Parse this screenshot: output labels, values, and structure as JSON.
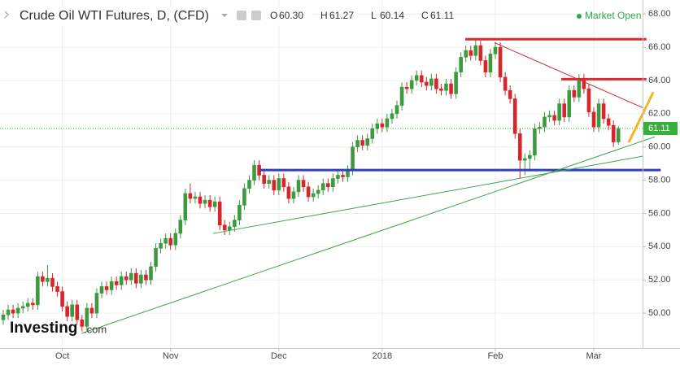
{
  "chart_data": {
    "type": "candlestick",
    "title": "Crude Oil WTI Futures, D, (CFD)",
    "ohlc_header": [
      {
        "key": "O",
        "value": "60.30"
      },
      {
        "key": "H",
        "value": "61.27"
      },
      {
        "key": "L",
        "value": "60.14"
      },
      {
        "key": "C",
        "value": "61.11"
      }
    ],
    "status": "Market Open",
    "logo": {
      "name": "Investing",
      "suffix": ".com"
    },
    "categories": [
      null,
      null,
      null,
      null,
      null,
      null,
      null,
      null,
      null,
      null,
      null,
      null,
      "Oct",
      null,
      null,
      null,
      null,
      null,
      null,
      null,
      null,
      null,
      null,
      null,
      null,
      null,
      null,
      null,
      null,
      null,
      null,
      null,
      null,
      null,
      "Nov",
      null,
      null,
      null,
      null,
      null,
      null,
      null,
      null,
      null,
      null,
      null,
      null,
      null,
      null,
      null,
      null,
      null,
      null,
      null,
      null,
      null,
      "Dec",
      null,
      null,
      null,
      null,
      null,
      null,
      null,
      null,
      null,
      null,
      null,
      null,
      null,
      null,
      null,
      null,
      null,
      null,
      null,
      null,
      "2018",
      null,
      null,
      null,
      null,
      null,
      null,
      null,
      null,
      null,
      null,
      null,
      null,
      null,
      null,
      null,
      null,
      null,
      null,
      null,
      null,
      null,
      null,
      "Feb",
      null,
      null,
      null,
      null,
      null,
      null,
      null,
      null,
      null,
      null,
      null,
      null,
      null,
      null,
      null,
      null,
      null,
      null,
      null,
      "Mar",
      null,
      null,
      null,
      null,
      null
    ],
    "open": [
      49.6,
      49.9,
      50.2,
      50.0,
      50.3,
      50.4,
      50.6,
      50.5,
      52.2,
      51.9,
      52.1,
      51.6,
      51.3,
      50.4,
      49.8,
      50.5,
      49.6,
      49.2,
      50.3,
      50.0,
      51.2,
      51.6,
      51.4,
      51.9,
      51.7,
      52.2,
      52.0,
      52.4,
      51.8,
      52.3,
      52.0,
      52.8,
      53.9,
      54.2,
      54.5,
      54.1,
      54.8,
      55.6,
      57.2,
      56.9,
      57.0,
      56.6,
      56.8,
      56.4,
      56.7,
      55.3,
      55.0,
      55.2,
      55.6,
      56.5,
      57.5,
      58.0,
      58.9,
      58.3,
      57.8,
      58.0,
      57.4,
      58.1,
      57.6,
      56.9,
      57.3,
      58.0,
      57.6,
      57.0,
      57.2,
      57.4,
      57.8,
      57.6,
      58.1,
      58.3,
      58.2,
      58.6,
      60.0,
      60.4,
      60.1,
      60.5,
      61.1,
      61.4,
      61.2,
      61.7,
      62.0,
      62.5,
      63.6,
      63.5,
      64.0,
      64.3,
      63.9,
      63.7,
      64.1,
      63.5,
      63.4,
      63.8,
      63.2,
      64.5,
      65.4,
      65.8,
      65.5,
      66.1,
      65.2,
      64.5,
      65.6,
      66.0,
      64.2,
      63.4,
      62.9,
      60.8,
      59.2,
      59.3,
      59.5,
      61.1,
      61.2,
      61.8,
      61.9,
      61.6,
      62.6,
      61.8,
      63.4,
      63.0,
      64.1,
      63.5,
      62.1,
      61.2,
      62.6,
      61.7,
      61.3,
      60.3
    ],
    "high": [
      50.2,
      50.5,
      50.5,
      50.6,
      50.7,
      50.9,
      50.9,
      52.5,
      52.5,
      52.9,
      52.4,
      51.9,
      51.6,
      50.7,
      50.8,
      50.8,
      49.9,
      50.6,
      50.6,
      51.5,
      51.9,
      51.9,
      52.2,
      52.2,
      52.5,
      52.5,
      52.7,
      52.7,
      52.6,
      52.6,
      53.1,
      54.2,
      54.5,
      54.8,
      54.8,
      55.1,
      55.9,
      57.5,
      57.8,
      57.3,
      57.3,
      57.1,
      57.1,
      57.0,
      57.0,
      55.6,
      55.5,
      55.9,
      56.8,
      57.8,
      58.3,
      59.2,
      59.2,
      58.6,
      58.3,
      58.3,
      58.4,
      58.4,
      57.9,
      57.6,
      58.3,
      58.3,
      57.9,
      57.5,
      57.7,
      58.1,
      58.1,
      58.4,
      58.6,
      58.6,
      58.9,
      60.3,
      60.7,
      60.7,
      60.8,
      61.4,
      61.7,
      61.7,
      62.0,
      62.3,
      62.8,
      63.9,
      63.9,
      64.3,
      64.6,
      64.6,
      64.2,
      64.4,
      64.4,
      63.8,
      64.1,
      64.1,
      64.8,
      65.7,
      66.1,
      66.1,
      66.5,
      66.4,
      65.5,
      65.9,
      66.3,
      66.3,
      64.5,
      63.7,
      63.2,
      61.1,
      59.6,
      59.8,
      61.4,
      61.5,
      62.1,
      62.2,
      62.2,
      62.9,
      62.9,
      63.7,
      63.7,
      64.4,
      64.4,
      63.8,
      62.4,
      62.9,
      62.9,
      62.0,
      61.6,
      61.27
    ],
    "low": [
      49.3,
      49.6,
      49.7,
      49.7,
      50.0,
      50.1,
      50.2,
      50.2,
      51.6,
      51.6,
      51.3,
      51.0,
      50.1,
      49.5,
      49.5,
      49.3,
      48.9,
      48.9,
      49.7,
      49.7,
      50.9,
      51.1,
      51.1,
      51.4,
      51.4,
      51.7,
      51.7,
      51.5,
      51.5,
      51.7,
      51.7,
      52.5,
      53.6,
      53.9,
      53.8,
      53.8,
      54.5,
      55.3,
      56.6,
      56.6,
      56.3,
      56.3,
      56.1,
      56.1,
      55.0,
      54.7,
      54.7,
      54.9,
      55.3,
      56.2,
      57.2,
      57.7,
      58.0,
      57.5,
      57.5,
      57.1,
      57.1,
      57.3,
      56.6,
      56.6,
      57.0,
      57.3,
      56.7,
      56.7,
      56.9,
      57.1,
      57.3,
      57.3,
      57.8,
      57.9,
      57.9,
      58.3,
      59.7,
      59.8,
      59.8,
      60.2,
      60.8,
      60.9,
      60.9,
      61.4,
      61.7,
      62.2,
      63.2,
      63.2,
      63.7,
      63.6,
      63.4,
      63.4,
      63.2,
      63.1,
      63.1,
      62.9,
      62.9,
      64.2,
      65.1,
      65.2,
      65.2,
      64.9,
      64.2,
      64.2,
      65.3,
      63.9,
      63.1,
      62.6,
      60.5,
      58.1,
      58.3,
      58.6,
      59.2,
      60.8,
      60.9,
      61.5,
      61.3,
      61.3,
      61.5,
      61.5,
      62.7,
      62.7,
      63.2,
      61.8,
      60.9,
      60.9,
      61.4,
      61.0,
      60.0,
      60.14
    ],
    "close": [
      49.9,
      50.2,
      50.0,
      50.3,
      50.4,
      50.6,
      50.5,
      52.2,
      51.9,
      52.1,
      51.6,
      51.3,
      50.4,
      49.8,
      50.5,
      49.6,
      49.2,
      50.3,
      50.0,
      51.2,
      51.6,
      51.4,
      51.9,
      51.7,
      52.2,
      52.0,
      52.4,
      51.8,
      52.3,
      52.0,
      52.8,
      53.9,
      54.2,
      54.5,
      54.1,
      54.8,
      55.6,
      57.2,
      56.9,
      57.0,
      56.6,
      56.8,
      56.4,
      56.7,
      55.3,
      55.0,
      55.2,
      55.6,
      56.5,
      57.5,
      58.0,
      58.9,
      58.3,
      57.8,
      58.0,
      57.4,
      58.1,
      57.6,
      56.9,
      57.3,
      58.0,
      57.6,
      57.0,
      57.2,
      57.4,
      57.8,
      57.6,
      58.1,
      58.3,
      58.2,
      58.6,
      60.0,
      60.4,
      60.1,
      60.5,
      61.1,
      61.4,
      61.2,
      61.7,
      62.0,
      62.5,
      63.6,
      63.5,
      64.0,
      64.3,
      63.9,
      63.7,
      64.1,
      63.5,
      63.4,
      63.8,
      63.2,
      64.5,
      65.4,
      65.8,
      65.5,
      66.1,
      65.2,
      64.5,
      65.6,
      66.0,
      64.2,
      63.4,
      62.9,
      60.8,
      59.2,
      59.3,
      59.5,
      61.1,
      61.2,
      61.8,
      61.9,
      61.6,
      62.6,
      61.8,
      63.4,
      63.0,
      64.1,
      63.5,
      62.1,
      61.2,
      62.6,
      61.7,
      61.3,
      60.3,
      61.11
    ],
    "up_color": "#3d9a3f",
    "down_color": "#d7262b",
    "last_price": {
      "value": 61.11,
      "label": "61.11"
    },
    "last_price_color": "#35b03a",
    "ylim": [
      47.9,
      68.5
    ],
    "yticks": [
      {
        "value": 50,
        "label": "50.00"
      },
      {
        "value": 52,
        "label": "52.00"
      },
      {
        "value": 54,
        "label": "54.00"
      },
      {
        "value": 56,
        "label": "56.00"
      },
      {
        "value": 58,
        "label": "58.00"
      },
      {
        "value": 60,
        "label": "60.00"
      },
      {
        "value": 62,
        "label": "62.00"
      },
      {
        "value": 64,
        "label": "64.00"
      },
      {
        "value": 66,
        "label": "66.00"
      },
      {
        "value": 68,
        "label": "68.00"
      }
    ],
    "grid": true,
    "drawings": [
      {
        "color": "#e0262f",
        "width": 3,
        "x": [
          93.9,
          130.7
        ],
        "y": [
          66.48,
          66.48
        ]
      },
      {
        "color": "#e0262f",
        "width": 3,
        "x": [
          113.4,
          130.7
        ],
        "y": [
          64.08,
          64.08
        ]
      },
      {
        "color": "#2f3fc0",
        "width": 3,
        "x": [
          52.2,
          133.6
        ],
        "y": [
          58.61,
          58.61
        ]
      },
      {
        "color": "#c8303a",
        "width": 1,
        "x": [
          99.8,
          129.9
        ],
        "y": [
          66.28,
          62.37
        ]
      },
      {
        "color": "#3aa64c",
        "width": 1,
        "x": [
          15.9,
          132.4
        ],
        "y": [
          48.78,
          60.61
        ]
      },
      {
        "color": "#3aa64c",
        "width": 1,
        "x": [
          42.6,
          129.9
        ],
        "y": [
          54.79,
          59.44
        ]
      },
      {
        "color": "#f5b626",
        "width": 3,
        "x": [
          127.1,
          132.1
        ],
        "y": [
          60.27,
          63.3
        ]
      }
    ]
  }
}
